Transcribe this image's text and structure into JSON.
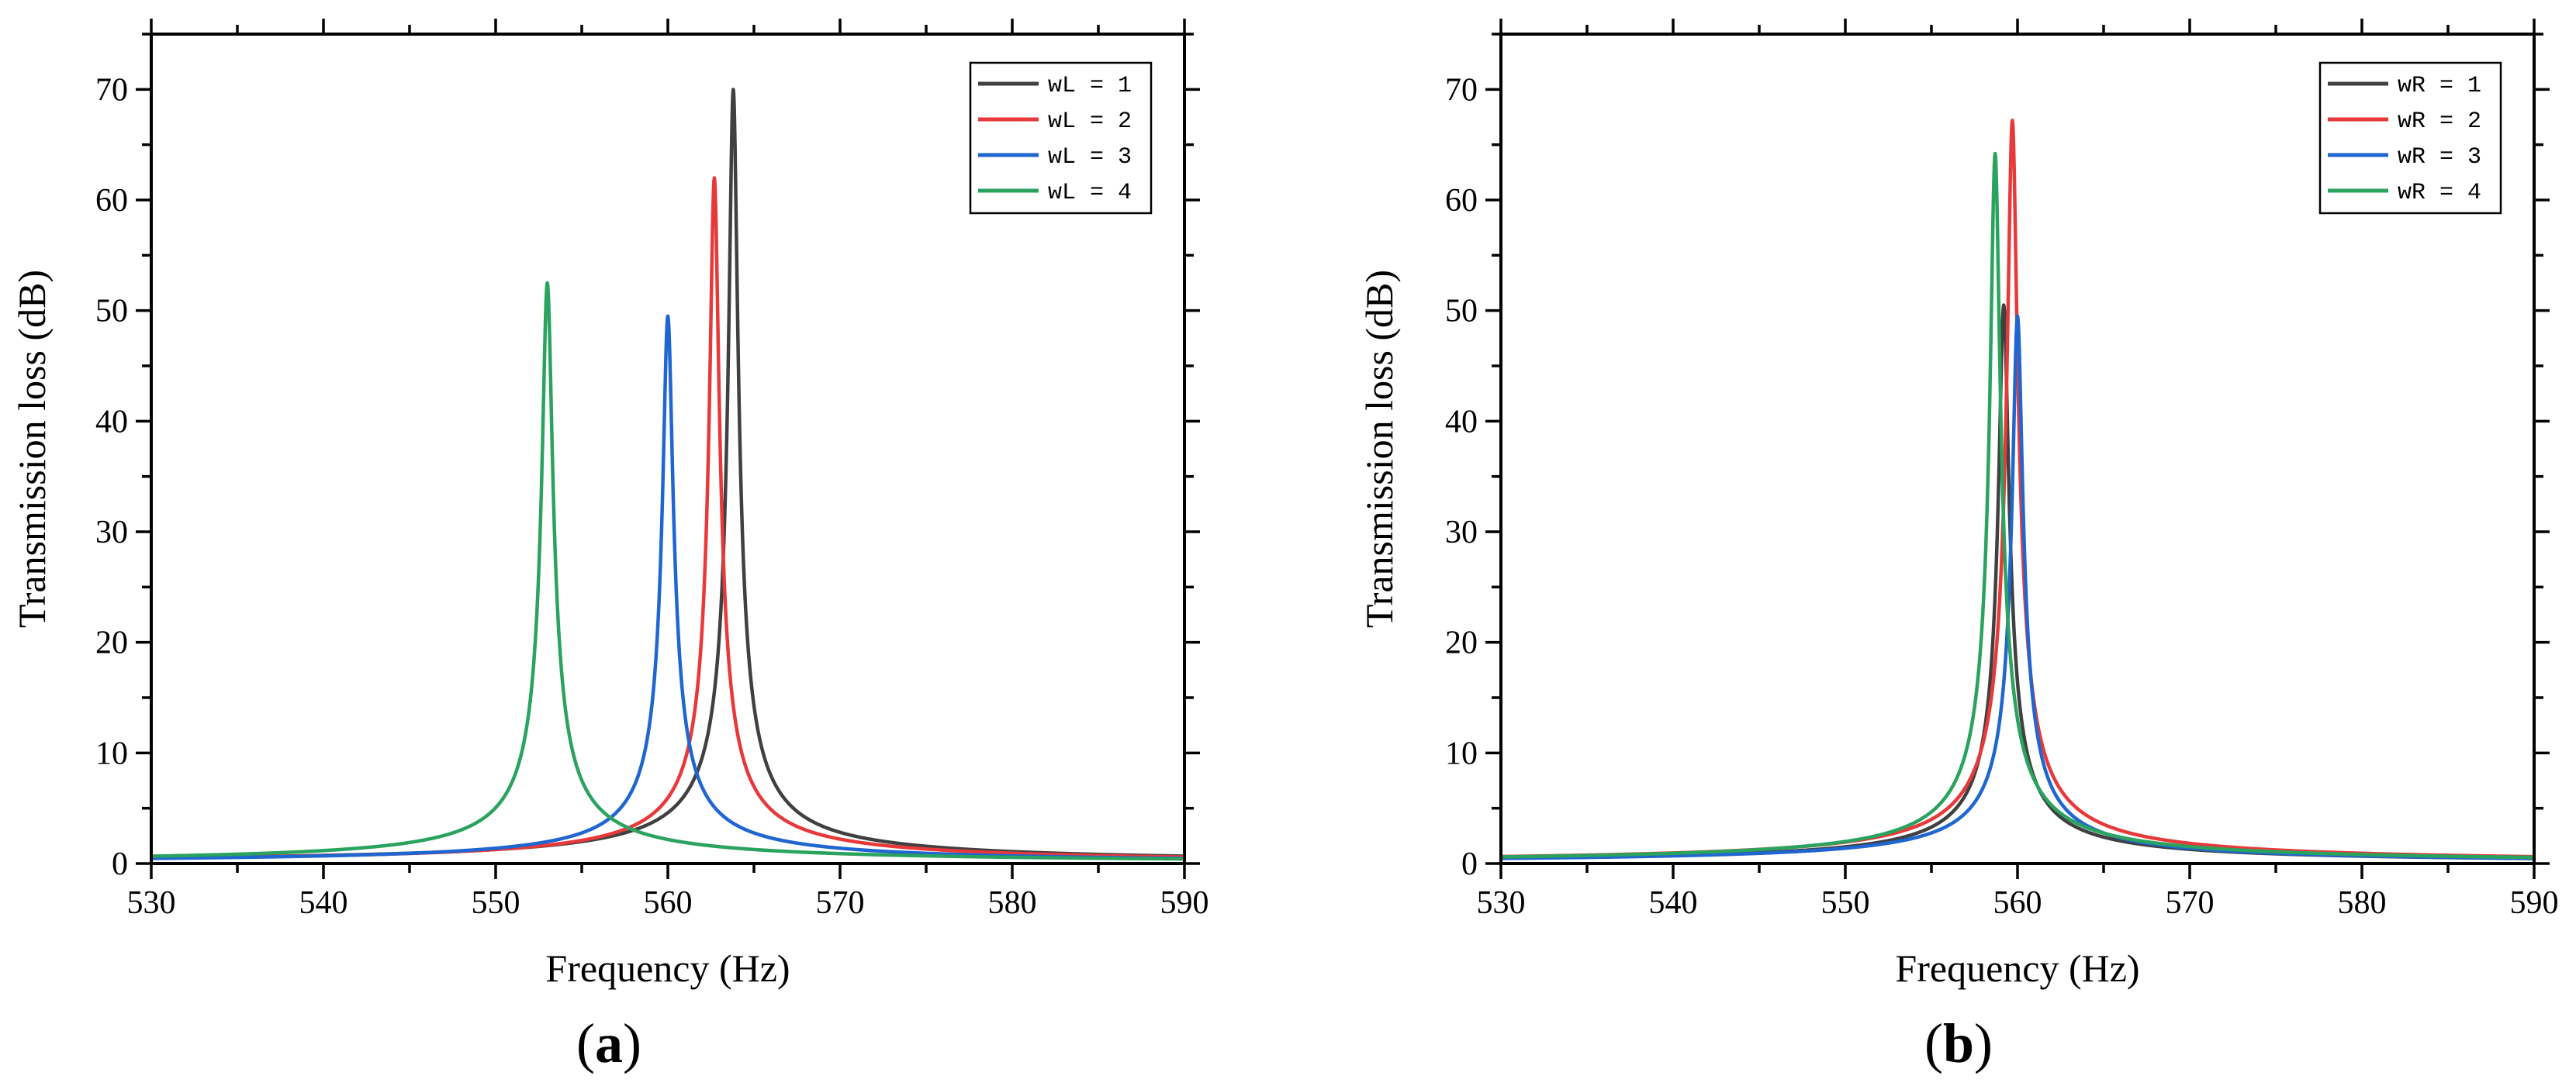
{
  "colors": {
    "wL=1": "#404040",
    "wL=2": "#e8393a",
    "wL=3": "#1f66d1",
    "wL=4": "#2aa35e"
  },
  "chart_data": [
    {
      "id": "a",
      "type": "line",
      "panel_label": "a",
      "xlabel": "Frequency (Hz)",
      "ylabel": "Transmission loss (dB)",
      "xlim": [
        530,
        590
      ],
      "ylim": [
        0,
        75
      ],
      "xticks": [
        530,
        540,
        550,
        560,
        570,
        580,
        590
      ],
      "yticks": [
        0,
        10,
        20,
        30,
        40,
        50,
        60,
        70
      ],
      "legend_position": "top-right",
      "series": [
        {
          "name": "wL = 1",
          "color": "#404040",
          "f0": 563.8,
          "peak": 70.0,
          "width": 0.5
        },
        {
          "name": "wL = 2",
          "color": "#e8393a",
          "f0": 562.7,
          "peak": 62.0,
          "width": 0.52
        },
        {
          "name": "wL = 3",
          "color": "#1f66d1",
          "f0": 560.0,
          "peak": 49.5,
          "width": 0.56
        },
        {
          "name": "wL = 4",
          "color": "#2aa35e",
          "f0": 553.0,
          "peak": 52.5,
          "width": 0.58
        }
      ]
    },
    {
      "id": "b",
      "type": "line",
      "panel_label": "b",
      "xlabel": "Frequency (Hz)",
      "ylabel": "Transmission loss (dB)",
      "xlim": [
        530,
        590
      ],
      "ylim": [
        0,
        75
      ],
      "xticks": [
        530,
        540,
        550,
        560,
        570,
        580,
        590
      ],
      "yticks": [
        0,
        10,
        20,
        30,
        40,
        50,
        60,
        70
      ],
      "legend_position": "top-right",
      "series": [
        {
          "name": "wR = 1",
          "color": "#404040",
          "f0": 559.2,
          "peak": 50.5,
          "width": 0.55
        },
        {
          "name": "wR = 2",
          "color": "#e8393a",
          "f0": 559.7,
          "peak": 67.2,
          "width": 0.56
        },
        {
          "name": "wR = 3",
          "color": "#1f66d1",
          "f0": 560.0,
          "peak": 49.5,
          "width": 0.56
        },
        {
          "name": "wR = 4",
          "color": "#2aa35e",
          "f0": 558.7,
          "peak": 64.2,
          "width": 0.54
        }
      ]
    }
  ]
}
